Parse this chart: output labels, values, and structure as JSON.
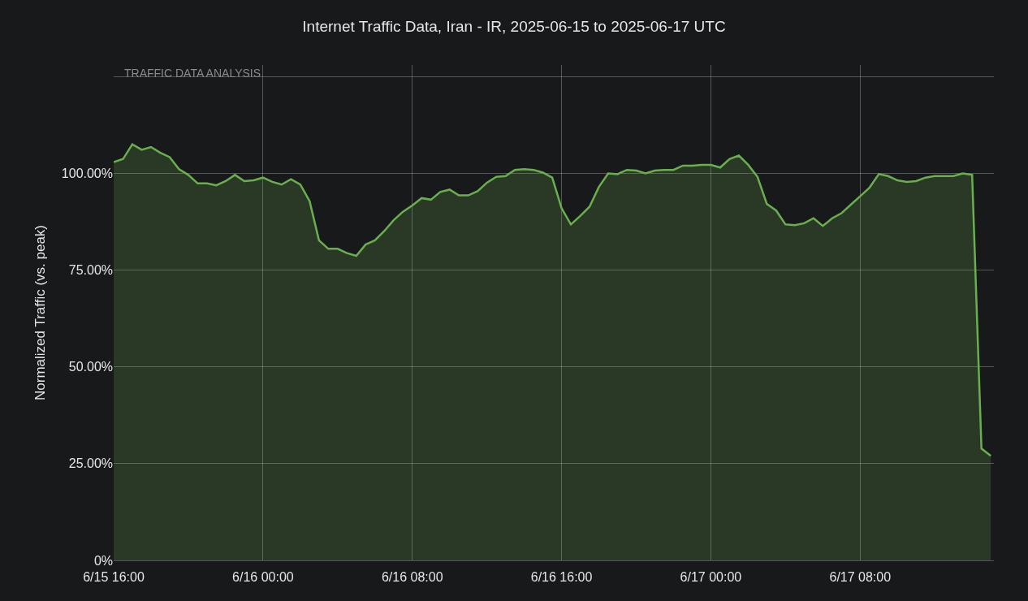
{
  "chart_data": {
    "type": "area",
    "title": "Internet Traffic Data, Iran - IR, 2025-06-15 to 2025-06-17 UTC",
    "ylabel": "Normalized Traffic (vs. peak)",
    "annotations": [
      "TRAFFIC DATA ANALYSIS"
    ],
    "x": [
      "2025-06-15T16:00",
      "2025-06-15T16:30",
      "2025-06-15T17:00",
      "2025-06-15T17:30",
      "2025-06-15T18:00",
      "2025-06-15T18:30",
      "2025-06-15T19:00",
      "2025-06-15T19:30",
      "2025-06-15T20:00",
      "2025-06-15T20:30",
      "2025-06-15T21:00",
      "2025-06-15T21:30",
      "2025-06-15T22:00",
      "2025-06-15T22:30",
      "2025-06-15T23:00",
      "2025-06-15T23:30",
      "2025-06-16T00:00",
      "2025-06-16T00:30",
      "2025-06-16T01:00",
      "2025-06-16T01:30",
      "2025-06-16T02:00",
      "2025-06-16T02:30",
      "2025-06-16T03:00",
      "2025-06-16T03:30",
      "2025-06-16T04:00",
      "2025-06-16T04:30",
      "2025-06-16T05:00",
      "2025-06-16T05:30",
      "2025-06-16T06:00",
      "2025-06-16T06:30",
      "2025-06-16T07:00",
      "2025-06-16T07:30",
      "2025-06-16T08:00",
      "2025-06-16T08:30",
      "2025-06-16T09:00",
      "2025-06-16T09:30",
      "2025-06-16T10:00",
      "2025-06-16T10:30",
      "2025-06-16T11:00",
      "2025-06-16T11:30",
      "2025-06-16T12:00",
      "2025-06-16T12:30",
      "2025-06-16T13:00",
      "2025-06-16T13:30",
      "2025-06-16T14:00",
      "2025-06-16T14:30",
      "2025-06-16T15:00",
      "2025-06-16T15:30",
      "2025-06-16T16:00",
      "2025-06-16T16:30",
      "2025-06-16T17:00",
      "2025-06-16T17:30",
      "2025-06-16T18:00",
      "2025-06-16T18:30",
      "2025-06-16T19:00",
      "2025-06-16T19:30",
      "2025-06-16T20:00",
      "2025-06-16T20:30",
      "2025-06-16T21:00",
      "2025-06-16T21:30",
      "2025-06-16T22:00",
      "2025-06-16T22:30",
      "2025-06-16T23:00",
      "2025-06-16T23:30",
      "2025-06-17T00:00",
      "2025-06-17T00:30",
      "2025-06-17T01:00",
      "2025-06-17T01:30",
      "2025-06-17T02:00",
      "2025-06-17T02:30",
      "2025-06-17T03:00",
      "2025-06-17T03:30",
      "2025-06-17T04:00",
      "2025-06-17T04:30",
      "2025-06-17T05:00",
      "2025-06-17T05:30",
      "2025-06-17T06:00",
      "2025-06-17T06:30",
      "2025-06-17T07:00",
      "2025-06-17T07:30",
      "2025-06-17T08:00",
      "2025-06-17T08:30",
      "2025-06-17T09:00",
      "2025-06-17T09:30",
      "2025-06-17T10:00",
      "2025-06-17T10:30",
      "2025-06-17T11:00",
      "2025-06-17T11:30",
      "2025-06-17T12:00",
      "2025-06-17T12:30",
      "2025-06-17T13:00",
      "2025-06-17T13:30",
      "2025-06-17T14:00",
      "2025-06-17T14:30",
      "2025-06-17T15:00"
    ],
    "series": [
      {
        "color": "#6aae4f",
        "values": [
          102.9,
          103.7,
          107.5,
          106.1,
          106.8,
          105.3,
          104.2,
          101.1,
          99.6,
          97.4,
          97.4,
          96.9,
          98.0,
          99.6,
          98.0,
          98.2,
          98.9,
          97.8,
          97.1,
          98.5,
          97.1,
          92.8,
          82.7,
          80.5,
          80.5,
          79.4,
          78.7,
          81.6,
          82.7,
          85.1,
          87.9,
          90.1,
          91.7,
          93.6,
          93.2,
          95.2,
          95.8,
          94.3,
          94.3,
          95.4,
          97.6,
          99.1,
          99.3,
          100.9,
          101.1,
          100.9,
          100.2,
          98.9,
          91.0,
          86.8,
          89.0,
          91.4,
          96.5,
          100.0,
          99.8,
          100.9,
          100.7,
          100.0,
          100.7,
          100.9,
          100.9,
          102.0,
          102.0,
          102.2,
          102.2,
          101.5,
          103.7,
          104.6,
          102.2,
          99.1,
          92.1,
          90.4,
          86.8,
          86.6,
          87.1,
          88.4,
          86.4,
          88.4,
          89.7,
          91.9,
          94.1,
          96.3,
          99.8,
          99.3,
          98.2,
          97.8,
          98.0,
          98.9,
          99.3,
          99.3,
          99.3,
          100.0,
          99.6,
          28.9,
          27.0
        ]
      }
    ],
    "xlim": [
      "2025-06-15T16:00",
      "2025-06-17T15:10"
    ],
    "xticks": [
      {
        "value": "2025-06-15T16:00",
        "label": "6/15 16:00"
      },
      {
        "value": "2025-06-16T00:00",
        "label": "6/16 00:00"
      },
      {
        "value": "2025-06-16T08:00",
        "label": "6/16 08:00"
      },
      {
        "value": "2025-06-16T16:00",
        "label": "6/16 16:00"
      },
      {
        "value": "2025-06-17T00:00",
        "label": "6/17 00:00"
      },
      {
        "value": "2025-06-17T08:00",
        "label": "6/17 08:00"
      }
    ],
    "ylim": [
      0,
      128
    ],
    "yticks": [
      {
        "value": 0,
        "label": "0%"
      },
      {
        "value": 25,
        "label": "25.00%"
      },
      {
        "value": 50,
        "label": "50.00%"
      },
      {
        "value": 75,
        "label": "75.00%"
      },
      {
        "value": 100,
        "label": "100.00%"
      },
      {
        "value": 125,
        "label": null
      }
    ],
    "grid": true
  }
}
